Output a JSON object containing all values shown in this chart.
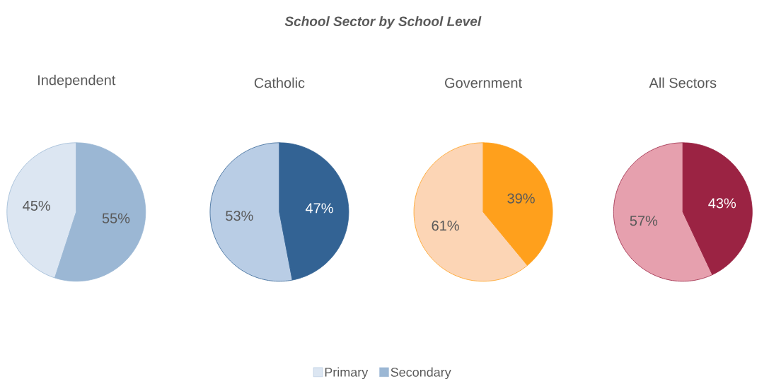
{
  "chart_data": [
    {
      "type": "pie",
      "title": "Independent",
      "categories": [
        "Primary",
        "Secondary"
      ],
      "values": [
        45,
        55
      ],
      "value_labels": [
        "45%",
        "55%"
      ],
      "colors": [
        "#dce6f2",
        "#9bb7d4"
      ],
      "legend": "bottom",
      "annotations": [
        "School Sector by School Level"
      ]
    },
    {
      "type": "pie",
      "title": "Catholic",
      "categories": [
        null,
        null
      ],
      "values": [
        53,
        47
      ],
      "value_labels": [
        "53%",
        "47%"
      ],
      "colors": [
        "#b9cde5",
        "#336394"
      ]
    },
    {
      "type": "pie",
      "title": "Government",
      "categories": [
        null,
        null
      ],
      "values": [
        61,
        39
      ],
      "value_labels": [
        "61%",
        "39%"
      ],
      "colors": [
        "#fcd5b5",
        "#ffa01c"
      ]
    },
    {
      "type": "pie",
      "title": "All Sectors",
      "categories": [
        null,
        null
      ],
      "values": [
        57,
        43
      ],
      "value_labels": [
        "57%",
        "43%"
      ],
      "colors": [
        "#e6a0ae",
        "#9b2343"
      ]
    }
  ]
}
